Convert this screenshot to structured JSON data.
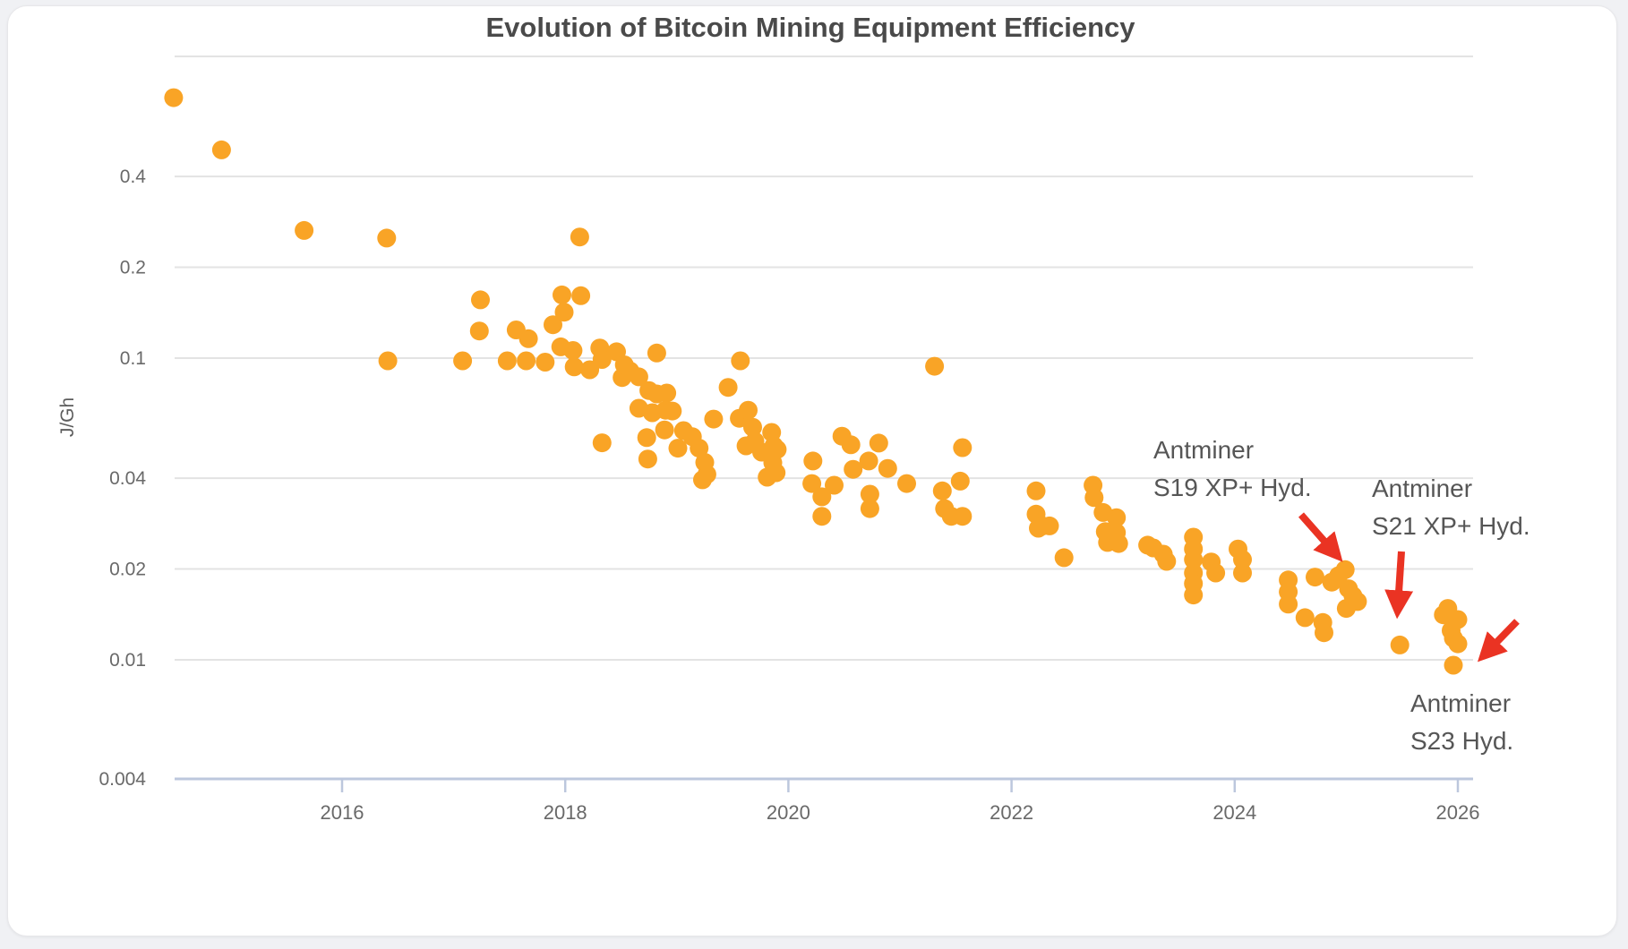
{
  "chart_data": {
    "type": "scatter",
    "title": "Evolution of Bitcoin Mining Equipment Efficiency",
    "xlabel": "",
    "ylabel": "J/Gh",
    "grid": true,
    "legend": false,
    "x_axis": {
      "range": [
        2014.5,
        2026.13
      ],
      "ticks": [
        2016,
        2018,
        2020,
        2022,
        2024,
        2026
      ],
      "tick_labels": [
        "2016",
        "2018",
        "2020",
        "2022",
        "2024",
        "2026"
      ]
    },
    "y_axis": {
      "scale": "log",
      "range": [
        0.004,
        1.0
      ],
      "ticks": [
        0.4,
        0.2,
        0.1,
        0.04,
        0.02,
        0.01,
        0.004
      ],
      "tick_labels": [
        "0.4",
        "0.2",
        "0.1",
        "0.04",
        "0.02",
        "0.01",
        "0.004"
      ],
      "unlabeled_gridlines": [
        1.0
      ]
    },
    "series": [
      {
        "name": "mining-equipment-efficiency",
        "marker_color": "#F9A426",
        "points": [
          [
            2014.49,
            0.73
          ],
          [
            2014.92,
            0.49
          ],
          [
            2015.66,
            0.265
          ],
          [
            2016.4,
            0.25
          ],
          [
            2016.41,
            0.098
          ],
          [
            2017.08,
            0.098
          ],
          [
            2017.23,
            0.123
          ],
          [
            2017.24,
            0.156
          ],
          [
            2017.48,
            0.098
          ],
          [
            2017.56,
            0.124
          ],
          [
            2017.65,
            0.098
          ],
          [
            2017.67,
            0.116
          ],
          [
            2017.82,
            0.097
          ],
          [
            2017.89,
            0.129
          ],
          [
            2017.96,
            0.109
          ],
          [
            2017.97,
            0.162
          ],
          [
            2017.99,
            0.142
          ],
          [
            2018.07,
            0.106
          ],
          [
            2018.08,
            0.0935
          ],
          [
            2018.13,
            0.252
          ],
          [
            2018.14,
            0.161
          ],
          [
            2018.22,
            0.0915
          ],
          [
            2018.31,
            0.108
          ],
          [
            2018.33,
            0.099
          ],
          [
            2018.33,
            0.0524
          ],
          [
            2018.46,
            0.105
          ],
          [
            2018.51,
            0.0862
          ],
          [
            2018.53,
            0.095
          ],
          [
            2018.58,
            0.0907
          ],
          [
            2018.66,
            0.0867
          ],
          [
            2018.66,
            0.0682
          ],
          [
            2018.73,
            0.0545
          ],
          [
            2018.74,
            0.0463
          ],
          [
            2018.75,
            0.0781
          ],
          [
            2018.78,
            0.0659
          ],
          [
            2018.82,
            0.104
          ],
          [
            2018.82,
            0.0761
          ],
          [
            2018.89,
            0.0578
          ],
          [
            2018.9,
            0.0672
          ],
          [
            2018.91,
            0.0766
          ],
          [
            2018.96,
            0.0668
          ],
          [
            2019.01,
            0.0503
          ],
          [
            2019.06,
            0.0575
          ],
          [
            2019.14,
            0.0549
          ],
          [
            2019.2,
            0.0503
          ],
          [
            2019.23,
            0.0395
          ],
          [
            2019.25,
            0.0451
          ],
          [
            2019.27,
            0.0412
          ],
          [
            2019.33,
            0.0628
          ],
          [
            2019.46,
            0.08
          ],
          [
            2019.56,
            0.0632
          ],
          [
            2019.57,
            0.098
          ],
          [
            2019.62,
            0.0512
          ],
          [
            2019.64,
            0.0672
          ],
          [
            2019.68,
            0.059
          ],
          [
            2019.7,
            0.053
          ],
          [
            2019.76,
            0.0488
          ],
          [
            2019.81,
            0.0403
          ],
          [
            2019.85,
            0.0567
          ],
          [
            2019.86,
            0.045
          ],
          [
            2019.87,
            0.0512
          ],
          [
            2019.89,
            0.0417
          ],
          [
            2019.9,
            0.0498
          ],
          [
            2020.21,
            0.0384
          ],
          [
            2020.22,
            0.0456
          ],
          [
            2020.3,
            0.0347
          ],
          [
            2020.3,
            0.0299
          ],
          [
            2020.41,
            0.0379
          ],
          [
            2020.48,
            0.0551
          ],
          [
            2020.56,
            0.0516
          ],
          [
            2020.58,
            0.0428
          ],
          [
            2020.72,
            0.0456
          ],
          [
            2020.73,
            0.0354
          ],
          [
            2020.73,
            0.0317
          ],
          [
            2020.81,
            0.0523
          ],
          [
            2020.89,
            0.0431
          ],
          [
            2021.06,
            0.0384
          ],
          [
            2021.31,
            0.094
          ],
          [
            2021.38,
            0.0363
          ],
          [
            2021.4,
            0.0317
          ],
          [
            2021.46,
            0.0299
          ],
          [
            2021.54,
            0.0391
          ],
          [
            2021.56,
            0.0505
          ],
          [
            2021.56,
            0.0299
          ],
          [
            2022.22,
            0.0363
          ],
          [
            2022.22,
            0.0304
          ],
          [
            2022.24,
            0.0273
          ],
          [
            2022.28,
            0.0278
          ],
          [
            2022.34,
            0.0278
          ],
          [
            2022.47,
            0.0218
          ],
          [
            2022.73,
            0.0379
          ],
          [
            2022.74,
            0.0345
          ],
          [
            2022.82,
            0.0308
          ],
          [
            2022.84,
            0.0266
          ],
          [
            2022.86,
            0.0245
          ],
          [
            2022.94,
            0.0296
          ],
          [
            2022.94,
            0.0264
          ],
          [
            2022.96,
            0.0243
          ],
          [
            2023.22,
            0.024
          ],
          [
            2023.27,
            0.0235
          ],
          [
            2023.36,
            0.0224
          ],
          [
            2023.39,
            0.0212
          ],
          [
            2023.63,
            0.0255
          ],
          [
            2023.63,
            0.0233
          ],
          [
            2023.63,
            0.0215
          ],
          [
            2023.63,
            0.0194
          ],
          [
            2023.63,
            0.0179
          ],
          [
            2023.63,
            0.0164
          ],
          [
            2023.79,
            0.0211
          ],
          [
            2023.83,
            0.0194
          ],
          [
            2024.03,
            0.0233
          ],
          [
            2024.07,
            0.0215
          ],
          [
            2024.07,
            0.0194
          ],
          [
            2024.48,
            0.0184
          ],
          [
            2024.48,
            0.0168
          ],
          [
            2024.48,
            0.0153
          ],
          [
            2024.63,
            0.0138
          ],
          [
            2024.72,
            0.0188
          ],
          [
            2024.79,
            0.0133
          ],
          [
            2024.8,
            0.0123
          ],
          [
            2024.87,
            0.0181
          ],
          [
            2024.93,
            0.019
          ],
          [
            2024.99,
            0.0199
          ],
          [
            2025.0,
            0.0148
          ],
          [
            2025.02,
            0.0172
          ],
          [
            2025.06,
            0.0163
          ],
          [
            2025.1,
            0.0156
          ],
          [
            2025.48,
            0.0112
          ],
          [
            2025.87,
            0.0141
          ],
          [
            2025.91,
            0.0148
          ],
          [
            2025.94,
            0.0125
          ],
          [
            2025.96,
            0.0118
          ],
          [
            2025.96,
            0.0096
          ],
          [
            2026.0,
            0.0136
          ],
          [
            2026.0,
            0.0113
          ]
        ]
      }
    ],
    "annotations": [
      {
        "lines": [
          "Antminer",
          "S19 XP+ Hyd."
        ],
        "target_point": [
          2024.99,
          0.0199
        ]
      },
      {
        "lines": [
          "Antminer",
          "S21 XP+ Hyd."
        ],
        "target_point": [
          2025.48,
          0.0112
        ]
      },
      {
        "lines": [
          "Antminer",
          "S23 Hyd."
        ],
        "target_point": [
          2025.96,
          0.0096
        ]
      }
    ],
    "colors": {
      "marker": "#F9A426",
      "gridline": "#e3e3e3",
      "axis_line": "#bcc7dd",
      "title_text": "#4a4a4a",
      "tick_text": "#696969",
      "annotation_text": "#565656",
      "arrow": "#EA3323"
    }
  }
}
